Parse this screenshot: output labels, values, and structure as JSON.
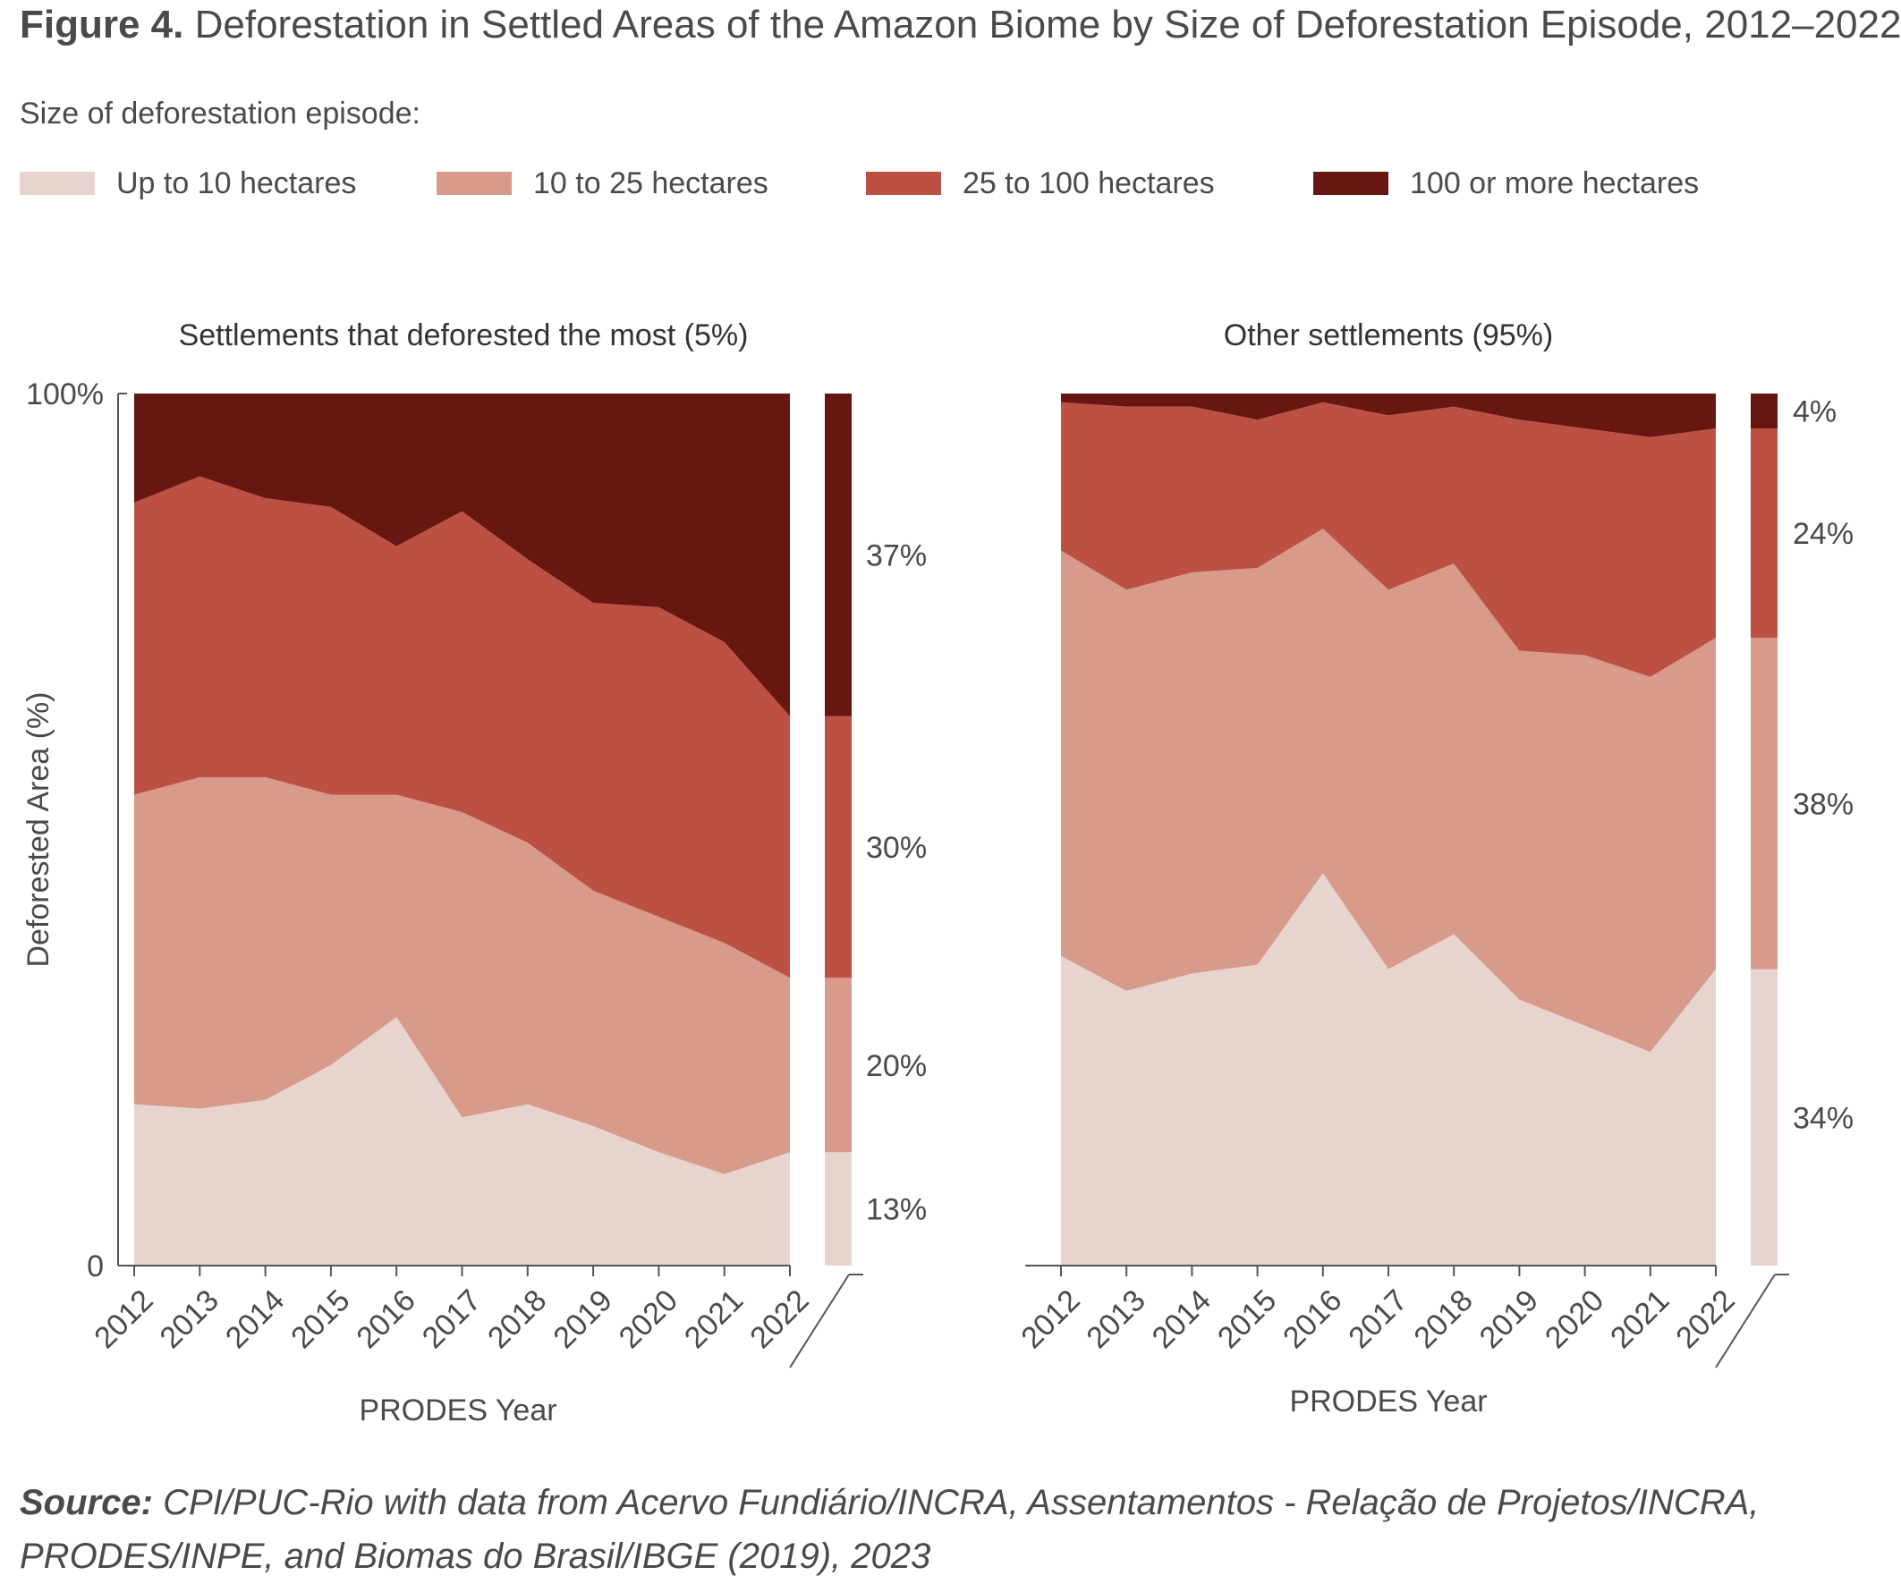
{
  "figure": {
    "label": "Figure 4.",
    "title": "Deforestation in Settled Areas of the Amazon Biome by Size of Deforestation Episode, 2012–2022"
  },
  "legend": {
    "heading": "Size of deforestation episode:",
    "items": [
      {
        "label": "Up to 10 hectares",
        "color": "#e8d4ce"
      },
      {
        "label": "10 to 25 hectares",
        "color": "#d79a8b"
      },
      {
        "label": "25 to 100 hectares",
        "color": "#bc5143"
      },
      {
        "label": "100 or more hectares",
        "color": "#671611"
      }
    ]
  },
  "source": {
    "label": "Source:",
    "text": "CPI/PUC-Rio with data from Acervo Fundiário/INCRA, Assentamentos - Relação de Projetos/INCRA, PRODES/INPE, and Biomas do Brasil/IBGE (2019), 2023"
  },
  "chart_data": [
    {
      "type": "area",
      "stacked": "percent",
      "title": "Settlements that deforested the most (5%)",
      "xlabel": "PRODES Year",
      "ylabel": "Deforested Area (%)",
      "ytick_labels": [
        "0",
        "100%"
      ],
      "ylim": [
        0,
        100
      ],
      "x": [
        "2012",
        "2013",
        "2014",
        "2015",
        "2016",
        "2017",
        "2018",
        "2019",
        "2020",
        "2021",
        "2022"
      ],
      "series": [
        {
          "name": "Up to 10 hectares",
          "values": [
            18.5,
            18,
            19,
            23,
            28.5,
            17,
            18.5,
            16,
            13,
            10.5,
            13
          ]
        },
        {
          "name": "10 to 25 hectares",
          "values": [
            35.5,
            38,
            37,
            31,
            25.5,
            35,
            30,
            27,
            27,
            26.5,
            20
          ]
        },
        {
          "name": "25 to 100 hectares",
          "values": [
            33.5,
            34.5,
            32,
            33,
            28.5,
            34.5,
            32.5,
            33,
            35.5,
            34.5,
            30
          ]
        },
        {
          "name": "100 or more hectares",
          "values": [
            12.5,
            9.5,
            12,
            13,
            17.5,
            13.5,
            19,
            24,
            24.5,
            28.5,
            37
          ]
        }
      ],
      "end_labels": [
        "13%",
        "20%",
        "30%",
        "37%"
      ]
    },
    {
      "type": "area",
      "stacked": "percent",
      "title": "Other settlements (95%)",
      "xlabel": "PRODES Year",
      "ylabel": "",
      "x": [
        "2012",
        "2013",
        "2014",
        "2015",
        "2016",
        "2017",
        "2018",
        "2019",
        "2020",
        "2021",
        "2022"
      ],
      "ylim": [
        0,
        100
      ],
      "series": [
        {
          "name": "Up to 10 hectares",
          "values": [
            35.5,
            31.5,
            33.5,
            34.5,
            45,
            34,
            38,
            30.5,
            27.5,
            24.5,
            34
          ]
        },
        {
          "name": "10 to 25 hectares",
          "values": [
            46.5,
            46,
            46,
            45.5,
            39.5,
            43.5,
            42.5,
            40,
            42.5,
            43,
            38
          ]
        },
        {
          "name": "25 to 100 hectares",
          "values": [
            17,
            21,
            19,
            17,
            14.5,
            20,
            18,
            26.5,
            26,
            27.5,
            24
          ]
        },
        {
          "name": "100 or more hectares",
          "values": [
            1,
            1.5,
            1.5,
            3,
            1,
            2.5,
            1.5,
            3,
            4,
            5,
            4
          ]
        }
      ],
      "end_labels": [
        "34%",
        "38%",
        "24%",
        "4%"
      ]
    }
  ]
}
